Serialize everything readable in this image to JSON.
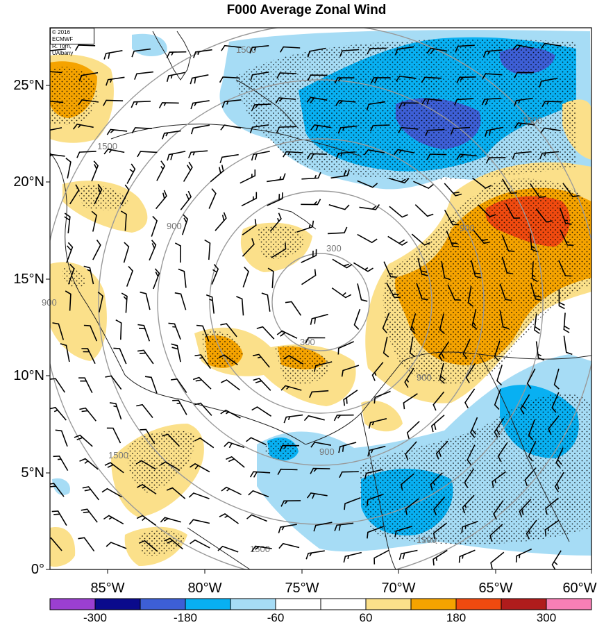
{
  "title": "F000 Average Zonal Wind",
  "credit": {
    "line1": "© 2016 ECMWF",
    "line2": "R. Torn, UAlbany"
  },
  "lat_labels": [
    "25°N",
    "20°N",
    "15°N",
    "10°N",
    "5°N",
    "0°"
  ],
  "lon_labels": [
    "85°W",
    "80°W",
    "75°W",
    "70°W",
    "65°W",
    "60°W"
  ],
  "distance_contour_labels": [
    "1500",
    "1500",
    "900",
    "900",
    "300",
    "300",
    "900",
    "900",
    "1500",
    "1500",
    "900",
    "1500",
    "1500"
  ],
  "colorbar": {
    "colors": [
      "#9b3fd1",
      "#0a0a8c",
      "#3d5fd6",
      "#08b0f2",
      "#a6dcf5",
      "#ffffff",
      "#ffffff",
      "#fbe08a",
      "#f5a300",
      "#f04a0f",
      "#b01c1c",
      "#f77fb5"
    ],
    "labels": [
      "-300",
      "-180",
      "-60",
      "60",
      "180",
      "300"
    ]
  },
  "colors": {
    "land_outline": "#222222",
    "range_rings": "#999999",
    "barbs": "#000000",
    "stipple": "#000000"
  }
}
